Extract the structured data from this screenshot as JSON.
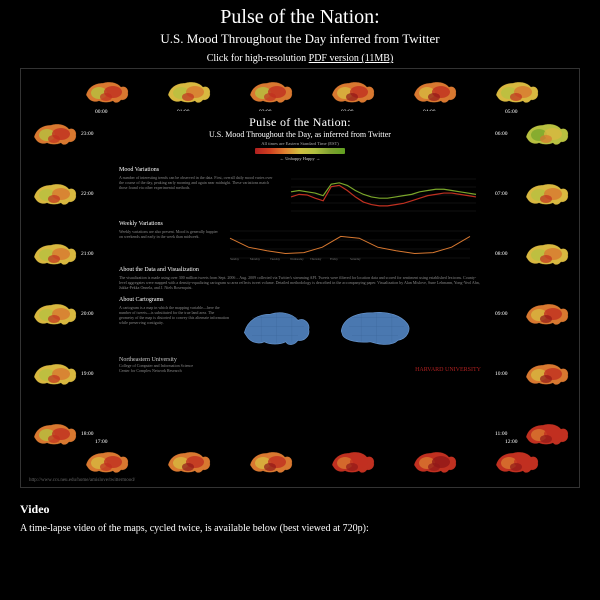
{
  "header": {
    "title": "Pulse of the Nation:",
    "subtitle": "U.S. Mood Throughout the Day inferred from Twitter",
    "pdf_prefix": "Click for high-resolution ",
    "pdf_link_text": "PDF version (11MB)"
  },
  "poster": {
    "title": "Pulse of the Nation:",
    "subtitle": "U.S. Mood Throughout the Day, as inferred from Twitter",
    "tz_note": "All times are Eastern Standard Time (EST)",
    "legend_label": "← Unhappy   Happy →",
    "colors": {
      "happy": "#7aa62a",
      "mid_happy": "#b8c040",
      "neutral": "#d8b840",
      "mid_unhappy": "#d87830",
      "unhappy": "#c03020",
      "deep_unhappy": "#901818",
      "blue_map": "#4a78b0",
      "grid": "#333333",
      "bg": "#000000"
    },
    "ring_maps": [
      {
        "time": "00:00",
        "pos": "top",
        "idx": 0,
        "mood": 0.55
      },
      {
        "time": "01:00",
        "pos": "top",
        "idx": 1,
        "mood": 0.6
      },
      {
        "time": "02:00",
        "pos": "top",
        "idx": 2,
        "mood": 0.55
      },
      {
        "time": "03:00",
        "pos": "top",
        "idx": 3,
        "mood": 0.5
      },
      {
        "time": "04:00",
        "pos": "top",
        "idx": 4,
        "mood": 0.45
      },
      {
        "time": "05:00",
        "pos": "top",
        "idx": 5,
        "mood": 0.7
      },
      {
        "time": "06:00",
        "pos": "right",
        "idx": 0,
        "mood": 0.72
      },
      {
        "time": "07:00",
        "pos": "right",
        "idx": 1,
        "mood": 0.68
      },
      {
        "time": "08:00",
        "pos": "right",
        "idx": 2,
        "mood": 0.6
      },
      {
        "time": "09:00",
        "pos": "right",
        "idx": 3,
        "mood": 0.5
      },
      {
        "time": "10:00",
        "pos": "right",
        "idx": 4,
        "mood": 0.42
      },
      {
        "time": "11:00",
        "pos": "right",
        "idx": 5,
        "mood": 0.38
      },
      {
        "time": "12:00",
        "pos": "bottom",
        "idx": 5,
        "mood": 0.36
      },
      {
        "time": "13:00",
        "pos": "bottom",
        "idx": 4,
        "mood": 0.35
      },
      {
        "time": "14:00",
        "pos": "bottom",
        "idx": 3,
        "mood": 0.38
      },
      {
        "time": "15:00",
        "pos": "bottom",
        "idx": 2,
        "mood": 0.42
      },
      {
        "time": "16:00",
        "pos": "bottom",
        "idx": 1,
        "mood": 0.48
      },
      {
        "time": "17:00",
        "pos": "bottom",
        "idx": 0,
        "mood": 0.52
      },
      {
        "time": "18:00",
        "pos": "left",
        "idx": 5,
        "mood": 0.55
      },
      {
        "time": "19:00",
        "pos": "left",
        "idx": 4,
        "mood": 0.58
      },
      {
        "time": "20:00",
        "pos": "left",
        "idx": 3,
        "mood": 0.62
      },
      {
        "time": "21:00",
        "pos": "left",
        "idx": 2,
        "mood": 0.6
      },
      {
        "time": "22:00",
        "pos": "left",
        "idx": 1,
        "mood": 0.58
      },
      {
        "time": "23:00",
        "pos": "left",
        "idx": 0,
        "mood": 0.55
      }
    ],
    "sections": {
      "mood_variations": {
        "heading": "Mood Variations",
        "text": "A number of interesting trends can be observed in the data. First, overall daily mood varies over the course of the day, peaking early morning and again near midnight. These variations match those found via other experimental methods.",
        "chart": {
          "type": "line",
          "series": [
            {
              "color": "#c03020",
              "label": "Weekday",
              "values": [
                0.52,
                0.56,
                0.55,
                0.5,
                0.46,
                0.68,
                0.7,
                0.62,
                0.52,
                0.44,
                0.4,
                0.38,
                0.38,
                0.4,
                0.42,
                0.46,
                0.5,
                0.54,
                0.56,
                0.58,
                0.58,
                0.56,
                0.54,
                0.52
              ]
            },
            {
              "color": "#7aa62a",
              "label": "Weekend",
              "values": [
                0.6,
                0.62,
                0.6,
                0.58,
                0.54,
                0.72,
                0.74,
                0.7,
                0.62,
                0.56,
                0.52,
                0.5,
                0.5,
                0.52,
                0.54,
                0.56,
                0.6,
                0.62,
                0.64,
                0.64,
                0.62,
                0.6,
                0.58,
                0.56
              ]
            }
          ],
          "xlim": [
            0,
            23
          ],
          "ylim": [
            0.3,
            0.8
          ],
          "x_ticks": [
            0,
            6,
            12,
            18,
            23
          ]
        }
      },
      "weekly_variations": {
        "heading": "Weekly Variations",
        "text": "Weekly variations are also present. Mood is generally happier on weekends and early in the week than midweek.",
        "chart": {
          "type": "line",
          "days": [
            "Sunday",
            "Monday",
            "Tuesday",
            "Wednesday",
            "Thursday",
            "Friday",
            "Saturday"
          ],
          "color": "#d87830",
          "values": [
            0.62,
            0.52,
            0.48,
            0.45,
            0.46,
            0.52,
            0.64
          ],
          "ylim": [
            0.4,
            0.7
          ]
        }
      },
      "about_data": {
        "heading": "About the Data and Visualization",
        "text": "The visualization is made using over 300 million tweets from Sept. 2006 – Aug. 2009 collected via Twitter's streaming API. Tweets were filtered for location data and scored for sentiment using established lexicons. County-level aggregates were mapped with a density-equalizing cartogram so area reflects tweet volume. Detailed methodology is described in the accompanying paper. Visualization by Alan Mislove, Sune Lehmann, Yong-Yeol Ahn, Jukka-Pekka Onnela, and J. Niels Rosenquist."
      },
      "about_cartograms": {
        "heading": "About Cartograms",
        "text": "A cartogram is a map in which the mapping variable—here the number of tweets—is substituted for the true land area. The geometry of the map is distorted to convey this alternate information while preserving contiguity.",
        "maps": [
          {
            "label": "Tweets",
            "color": "#4a78b0"
          },
          {
            "label": "Equal-area",
            "color": "#4a78b0"
          }
        ]
      }
    },
    "footer": {
      "uni_left": "Northeastern University",
      "uni_left_sub1": "College of Computer and Information Science",
      "uni_left_sub2": "Center for Complex Network Research",
      "uni_right": "HARVARD UNIVERSITY",
      "credits": "© 2010 Alan Mislove · Sune Lehmann · Yong-Yeol Ahn · Jukka-Pekka Onnela · J. Niels Rosenquist",
      "url": "http://www.ccs.neu.edu/home/amislove/twittermood/"
    }
  },
  "video": {
    "heading": "Video",
    "text": "A time-lapse video of the maps, cycled twice, is available below (best viewed at 720p):"
  }
}
